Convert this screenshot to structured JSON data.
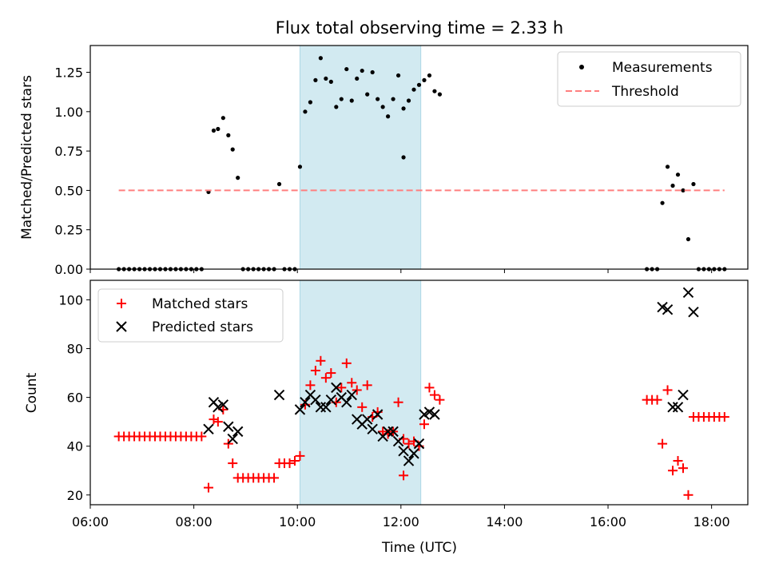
{
  "title": "Flux total observing time = 2.33 h",
  "colors": {
    "shade": "#add8e6",
    "measurements": "#000000",
    "threshold": "#ff7f7f",
    "matched": "#ff0000",
    "predicted": "#000000"
  },
  "chart_data": [
    {
      "type": "scatter",
      "ylabel": "Matched/Predicted stars",
      "xlim": [
        "06:00",
        "18:42"
      ],
      "ylim": [
        0,
        1.42
      ],
      "yticks": [
        0.0,
        0.25,
        0.5,
        0.75,
        1.0,
        1.25
      ],
      "ytick_labels": [
        "0.00",
        "0.25",
        "0.50",
        "0.75",
        "1.00",
        "1.25"
      ],
      "grid": false,
      "legend_position": "top-right",
      "shaded_span": [
        "10:03",
        "12:23"
      ],
      "series": [
        {
          "name": "Measurements",
          "marker": "dot",
          "points": [
            [
              "06:33",
              0
            ],
            [
              "06:39",
              0
            ],
            [
              "06:45",
              0
            ],
            [
              "06:51",
              0
            ],
            [
              "06:57",
              0
            ],
            [
              "07:03",
              0
            ],
            [
              "07:09",
              0
            ],
            [
              "07:15",
              0
            ],
            [
              "07:21",
              0
            ],
            [
              "07:27",
              0
            ],
            [
              "07:33",
              0
            ],
            [
              "07:39",
              0
            ],
            [
              "07:45",
              0
            ],
            [
              "07:51",
              0
            ],
            [
              "07:57",
              0
            ],
            [
              "08:03",
              0
            ],
            [
              "08:09",
              0
            ],
            [
              "08:17",
              0.49
            ],
            [
              "08:23",
              0.88
            ],
            [
              "08:28",
              0.89
            ],
            [
              "08:34",
              0.96
            ],
            [
              "08:40",
              0.85
            ],
            [
              "08:45",
              0.76
            ],
            [
              "08:51",
              0.58
            ],
            [
              "08:57",
              0
            ],
            [
              "09:03",
              0
            ],
            [
              "09:09",
              0
            ],
            [
              "09:15",
              0
            ],
            [
              "09:21",
              0
            ],
            [
              "09:27",
              0
            ],
            [
              "09:33",
              0
            ],
            [
              "09:39",
              0.54
            ],
            [
              "09:45",
              0
            ],
            [
              "09:51",
              0
            ],
            [
              "09:57",
              0
            ],
            [
              "10:03",
              0.65
            ],
            [
              "10:09",
              1.0
            ],
            [
              "10:15",
              1.06
            ],
            [
              "10:21",
              1.2
            ],
            [
              "10:27",
              1.34
            ],
            [
              "10:33",
              1.21
            ],
            [
              "10:39",
              1.19
            ],
            [
              "10:45",
              1.03
            ],
            [
              "10:51",
              1.08
            ],
            [
              "10:57",
              1.27
            ],
            [
              "11:03",
              1.07
            ],
            [
              "11:09",
              1.21
            ],
            [
              "11:15",
              1.26
            ],
            [
              "11:21",
              1.11
            ],
            [
              "11:27",
              1.25
            ],
            [
              "11:33",
              1.08
            ],
            [
              "11:39",
              1.03
            ],
            [
              "11:45",
              0.97
            ],
            [
              "11:51",
              1.08
            ],
            [
              "11:57",
              1.23
            ],
            [
              "12:03",
              1.02
            ],
            [
              "12:09",
              1.07
            ],
            [
              "12:15",
              1.14
            ],
            [
              "12:21",
              1.17
            ],
            [
              "12:03",
              0.71
            ],
            [
              "12:27",
              1.2
            ],
            [
              "12:33",
              1.23
            ],
            [
              "12:39",
              1.13
            ],
            [
              "12:45",
              1.11
            ],
            [
              "16:45",
              0
            ],
            [
              "16:51",
              0
            ],
            [
              "16:57",
              0
            ],
            [
              "17:03",
              0.42
            ],
            [
              "17:09",
              0.65
            ],
            [
              "17:15",
              0.53
            ],
            [
              "17:21",
              0.6
            ],
            [
              "17:27",
              0.5
            ],
            [
              "17:33",
              0.19
            ],
            [
              "17:39",
              0.54
            ],
            [
              "17:45",
              0
            ],
            [
              "17:51",
              0
            ],
            [
              "17:57",
              0
            ],
            [
              "18:03",
              0
            ],
            [
              "18:09",
              0
            ],
            [
              "18:15",
              0
            ]
          ]
        },
        {
          "name": "Threshold",
          "style": "dashed",
          "points": [
            [
              "06:33",
              0.5
            ],
            [
              "18:15",
              0.5
            ]
          ]
        }
      ]
    },
    {
      "type": "scatter",
      "xlabel": "Time (UTC)",
      "ylabel": "Count",
      "xlim": [
        "06:00",
        "18:42"
      ],
      "ylim": [
        16,
        108
      ],
      "xticks": [
        "06:00",
        "08:00",
        "10:00",
        "12:00",
        "14:00",
        "16:00",
        "18:00"
      ],
      "yticks": [
        20,
        40,
        60,
        80,
        100
      ],
      "grid": false,
      "legend_position": "top-left",
      "shaded_span": [
        "10:03",
        "12:23"
      ],
      "series": [
        {
          "name": "Matched stars",
          "marker": "plus",
          "points": [
            [
              "06:33",
              44
            ],
            [
              "06:39",
              44
            ],
            [
              "06:45",
              44
            ],
            [
              "06:51",
              44
            ],
            [
              "06:57",
              44
            ],
            [
              "07:03",
              44
            ],
            [
              "07:09",
              44
            ],
            [
              "07:15",
              44
            ],
            [
              "07:21",
              44
            ],
            [
              "07:27",
              44
            ],
            [
              "07:33",
              44
            ],
            [
              "07:39",
              44
            ],
            [
              "07:45",
              44
            ],
            [
              "07:51",
              44
            ],
            [
              "07:57",
              44
            ],
            [
              "08:03",
              44
            ],
            [
              "08:09",
              44
            ],
            [
              "08:17",
              23
            ],
            [
              "08:23",
              51
            ],
            [
              "08:28",
              50
            ],
            [
              "08:34",
              55
            ],
            [
              "08:40",
              41
            ],
            [
              "08:45",
              33
            ],
            [
              "08:51",
              27
            ],
            [
              "08:57",
              27
            ],
            [
              "09:03",
              27
            ],
            [
              "09:09",
              27
            ],
            [
              "09:15",
              27
            ],
            [
              "09:21",
              27
            ],
            [
              "09:27",
              27
            ],
            [
              "09:33",
              27
            ],
            [
              "09:39",
              33
            ],
            [
              "09:45",
              33
            ],
            [
              "09:51",
              33
            ],
            [
              "09:57",
              34
            ],
            [
              "10:03",
              36
            ],
            [
              "10:09",
              57
            ],
            [
              "10:15",
              65
            ],
            [
              "10:21",
              71
            ],
            [
              "10:27",
              75
            ],
            [
              "10:33",
              68
            ],
            [
              "10:39",
              70
            ],
            [
              "10:45",
              58
            ],
            [
              "10:51",
              64
            ],
            [
              "10:57",
              74
            ],
            [
              "11:03",
              66
            ],
            [
              "11:09",
              63
            ],
            [
              "11:15",
              56
            ],
            [
              "11:21",
              65
            ],
            [
              "11:27",
              52
            ],
            [
              "11:33",
              54
            ],
            [
              "11:39",
              46
            ],
            [
              "11:45",
              45
            ],
            [
              "11:51",
              46
            ],
            [
              "11:57",
              58
            ],
            [
              "12:03",
              43
            ],
            [
              "12:09",
              41
            ],
            [
              "12:15",
              42
            ],
            [
              "12:21",
              40
            ],
            [
              "12:03",
              28
            ],
            [
              "12:27",
              49
            ],
            [
              "12:33",
              64
            ],
            [
              "12:39",
              61
            ],
            [
              "12:45",
              59
            ],
            [
              "16:45",
              59
            ],
            [
              "16:51",
              59
            ],
            [
              "16:57",
              59
            ],
            [
              "17:03",
              41
            ],
            [
              "17:09",
              63
            ],
            [
              "17:15",
              30
            ],
            [
              "17:21",
              34
            ],
            [
              "17:27",
              31
            ],
            [
              "17:33",
              20
            ],
            [
              "17:39",
              52
            ],
            [
              "17:45",
              52
            ],
            [
              "17:51",
              52
            ],
            [
              "17:57",
              52
            ],
            [
              "18:03",
              52
            ],
            [
              "18:09",
              52
            ],
            [
              "18:15",
              52
            ]
          ]
        },
        {
          "name": "Predicted stars",
          "marker": "x",
          "points": [
            [
              "08:17",
              47
            ],
            [
              "08:23",
              58
            ],
            [
              "08:28",
              56
            ],
            [
              "08:34",
              57
            ],
            [
              "08:40",
              48
            ],
            [
              "08:45",
              43
            ],
            [
              "08:51",
              46
            ],
            [
              "09:39",
              61
            ],
            [
              "10:03",
              55
            ],
            [
              "10:09",
              58
            ],
            [
              "10:15",
              61
            ],
            [
              "10:21",
              59
            ],
            [
              "10:27",
              56
            ],
            [
              "10:33",
              56
            ],
            [
              "10:39",
              59
            ],
            [
              "10:45",
              64
            ],
            [
              "10:51",
              60
            ],
            [
              "10:57",
              58
            ],
            [
              "11:03",
              61
            ],
            [
              "11:09",
              51
            ],
            [
              "11:15",
              49
            ],
            [
              "11:21",
              51
            ],
            [
              "11:27",
              47
            ],
            [
              "11:33",
              53
            ],
            [
              "11:39",
              44
            ],
            [
              "11:45",
              46
            ],
            [
              "11:51",
              46
            ],
            [
              "11:57",
              42
            ],
            [
              "12:03",
              38
            ],
            [
              "12:09",
              34
            ],
            [
              "12:15",
              37
            ],
            [
              "12:21",
              41
            ],
            [
              "12:27",
              53
            ],
            [
              "12:33",
              54
            ],
            [
              "12:39",
              53
            ],
            [
              "17:03",
              97
            ],
            [
              "17:09",
              96
            ],
            [
              "17:15",
              56
            ],
            [
              "17:21",
              56
            ],
            [
              "17:27",
              61
            ],
            [
              "17:33",
              103
            ],
            [
              "17:39",
              95
            ]
          ]
        }
      ]
    }
  ]
}
